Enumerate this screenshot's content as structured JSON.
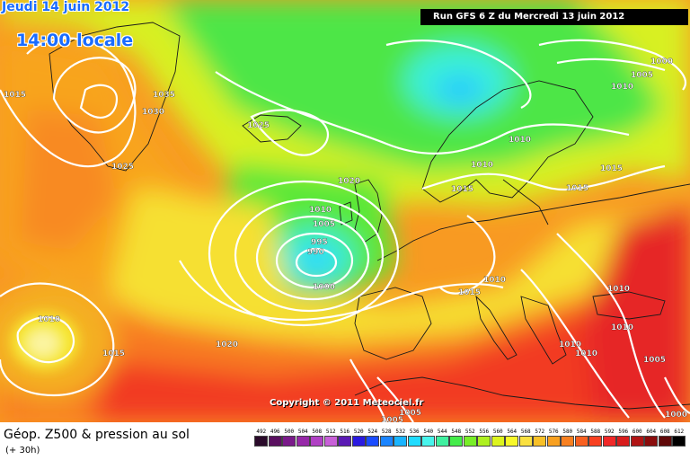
{
  "header": {
    "date": "Jeudi 14 juin 2012",
    "time": "14:00 locale",
    "run": "Run GFS 6 Z du Mercredi 13 juin 2012"
  },
  "copyright": "Copyright © 2011 Meteociel.fr",
  "legend": {
    "title": "Géop. Z500 & pression au sol",
    "subtitle": "(+ 30h)",
    "scale": [
      {
        "label": "492",
        "color": "#2a0a2a"
      },
      {
        "label": "496",
        "color": "#5a1060"
      },
      {
        "label": "500",
        "color": "#7a1a8a"
      },
      {
        "label": "504",
        "color": "#9628a8"
      },
      {
        "label": "508",
        "color": "#b040c4"
      },
      {
        "label": "512",
        "color": "#c860d8"
      },
      {
        "label": "516",
        "color": "#5a1ab4"
      },
      {
        "label": "520",
        "color": "#2a1ae0"
      },
      {
        "label": "524",
        "color": "#1a4cff"
      },
      {
        "label": "528",
        "color": "#1a84ff"
      },
      {
        "label": "532",
        "color": "#1ab4ff"
      },
      {
        "label": "536",
        "color": "#20dcff"
      },
      {
        "label": "540",
        "color": "#48f4ec"
      },
      {
        "label": "544",
        "color": "#40f0a0"
      },
      {
        "label": "548",
        "color": "#44ec4a"
      },
      {
        "label": "552",
        "color": "#78ee28"
      },
      {
        "label": "556",
        "color": "#aef020"
      },
      {
        "label": "560",
        "color": "#dcf41e"
      },
      {
        "label": "564",
        "color": "#f8f82a"
      },
      {
        "label": "568",
        "color": "#fae040"
      },
      {
        "label": "572",
        "color": "#f8c028"
      },
      {
        "label": "576",
        "color": "#f8a020"
      },
      {
        "label": "580",
        "color": "#f88020"
      },
      {
        "label": "584",
        "color": "#f86020"
      },
      {
        "label": "588",
        "color": "#f84020"
      },
      {
        "label": "592",
        "color": "#f02828"
      },
      {
        "label": "596",
        "color": "#d81c1c"
      },
      {
        "label": "600",
        "color": "#b01414"
      },
      {
        "label": "604",
        "color": "#8a0c0c"
      },
      {
        "label": "608",
        "color": "#600808"
      },
      {
        "label": "612",
        "color": "#000000"
      }
    ]
  },
  "isobar_labels": [
    "1015",
    "1035",
    "1030",
    "1025",
    "1025",
    "1020",
    "1010",
    "1005",
    "995",
    "990",
    "1000",
    "1010",
    "1020",
    "1015",
    "1010",
    "1010",
    "1015",
    "1015",
    "1010",
    "1000",
    "1005",
    "1010",
    "1015",
    "1015",
    "1010",
    "1010",
    "1010",
    "1010",
    "1005",
    "1005",
    "1005",
    "1000"
  ]
}
